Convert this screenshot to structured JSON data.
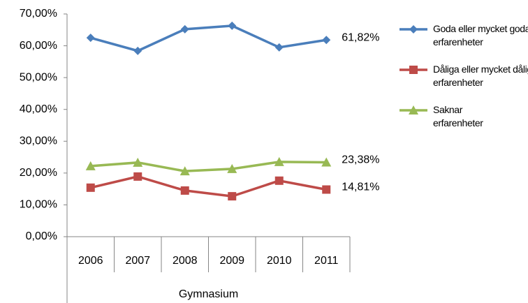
{
  "chart_data": {
    "type": "line",
    "categories": [
      "2006",
      "2007",
      "2008",
      "2009",
      "2010",
      "2011"
    ],
    "group_label": "Gymnasium",
    "series": [
      {
        "name": "Goda eller mycket goda erfarenheter",
        "color": "#4a7ebb",
        "marker": "diamond",
        "values": [
          62.5,
          58.4,
          65.2,
          66.3,
          59.5,
          61.82
        ],
        "value_labels": [
          null,
          null,
          null,
          null,
          null,
          "61,82%"
        ]
      },
      {
        "name": "Dåliga eller mycket dåliga erfarenheter",
        "color": "#be4b48",
        "marker": "square",
        "values": [
          15.4,
          18.9,
          14.5,
          12.7,
          17.6,
          14.81
        ],
        "value_labels": [
          null,
          null,
          null,
          null,
          null,
          "14,81%"
        ]
      },
      {
        "name": "Saknar erfarenheter",
        "color": "#98b954",
        "marker": "triangle",
        "values": [
          22.2,
          23.3,
          20.6,
          21.3,
          23.5,
          23.38
        ],
        "value_labels": [
          null,
          null,
          null,
          null,
          null,
          "23,38%"
        ]
      }
    ],
    "ylim": [
      0,
      70
    ],
    "yticks": [
      {
        "value": 0,
        "label": "0,00%"
      },
      {
        "value": 10,
        "label": "10,00%"
      },
      {
        "value": 20,
        "label": "20,00%"
      },
      {
        "value": 30,
        "label": "30,00%"
      },
      {
        "value": 40,
        "label": "40,00%"
      },
      {
        "value": 50,
        "label": "50,00%"
      },
      {
        "value": 60,
        "label": "60,00%"
      },
      {
        "value": 70,
        "label": "70,00%"
      }
    ],
    "grid": false,
    "legend": "right"
  }
}
